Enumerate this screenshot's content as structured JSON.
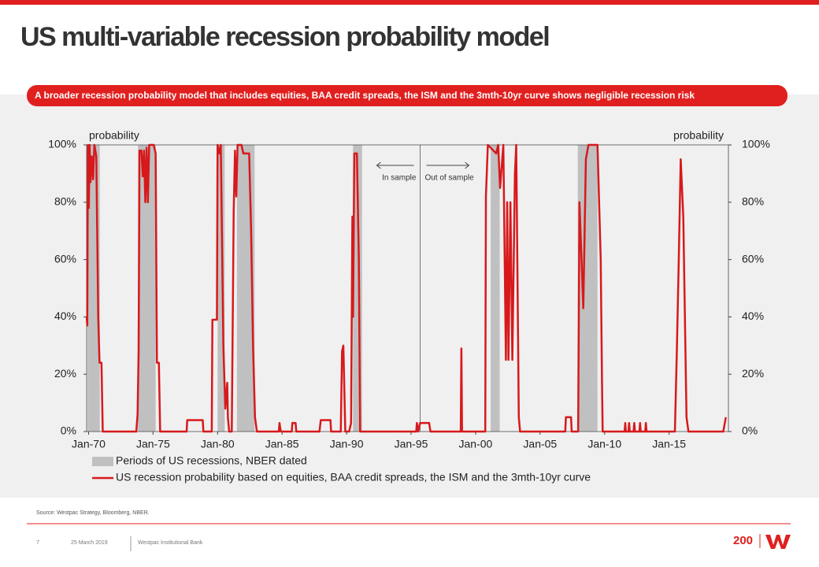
{
  "slide": {
    "title": "US multi-variable recession probability model",
    "banner": "A broader recession probability model that includes equities, BAA credit spreads, the ISM and the 3mth-10yr curve shows negligible recession risk",
    "source": "Source: Westpac Strategy, Bloomberg, NBER.",
    "page": "7",
    "date": "25 March 2019",
    "company": "Westpac Institutional Bank",
    "logo": "200"
  },
  "chart_data": {
    "type": "line",
    "y_label": "probability",
    "y2_label": "probability",
    "annotations": {
      "in_sample": "In sample",
      "out_sample": "Out of sample",
      "split": 1995.7
    },
    "xlim": [
      1969.85,
      2019.6
    ],
    "xticks": [
      {
        "value": 1970,
        "label": "Jan-70"
      },
      {
        "value": 1975,
        "label": "Jan-75"
      },
      {
        "value": 1980,
        "label": "Jan-80"
      },
      {
        "value": 1985,
        "label": "Jan-85"
      },
      {
        "value": 1990,
        "label": "Jan-90"
      },
      {
        "value": 1995,
        "label": "Jan-95"
      },
      {
        "value": 2000,
        "label": "Jan-00"
      },
      {
        "value": 2005,
        "label": "Jan-05"
      },
      {
        "value": 2010,
        "label": "Jan-10"
      },
      {
        "value": 2015,
        "label": "Jan-15"
      }
    ],
    "ylim": [
      0,
      100
    ],
    "yticks": [
      {
        "value": 0,
        "label": "0%"
      },
      {
        "value": 20,
        "label": "20%"
      },
      {
        "value": 40,
        "label": "40%"
      },
      {
        "value": 60,
        "label": "60%"
      },
      {
        "value": 80,
        "label": "80%"
      },
      {
        "value": 100,
        "label": "100%"
      }
    ],
    "y2lim": [
      0,
      100
    ],
    "y2ticks": [
      {
        "value": 0,
        "label": "0%"
      },
      {
        "value": 20,
        "label": "20%"
      },
      {
        "value": 40,
        "label": "40%"
      },
      {
        "value": 60,
        "label": "60%"
      },
      {
        "value": 80,
        "label": "80%"
      },
      {
        "value": 100,
        "label": "100%"
      }
    ],
    "x": [
      1969.85,
      1969.9,
      1969.95,
      1970.02,
      1970.08,
      1970.15,
      1970.25,
      1970.35,
      1970.45,
      1970.6,
      1970.75,
      1970.85,
      1971.0,
      1971.1,
      1973.7,
      1973.8,
      1973.88,
      1973.95,
      1974.1,
      1974.2,
      1974.3,
      1974.4,
      1974.5,
      1974.6,
      1974.7,
      1975.05,
      1975.2,
      1975.3,
      1975.45,
      1975.55,
      1977.6,
      1977.65,
      1978.85,
      1978.9,
      1979.55,
      1979.6,
      1979.95,
      1980.0,
      1980.15,
      1980.25,
      1980.45,
      1980.6,
      1980.75,
      1980.8,
      1980.9,
      1981.1,
      1981.25,
      1981.35,
      1981.45,
      1981.55,
      1981.85,
      1982.0,
      1982.45,
      1982.6,
      1982.75,
      1982.9,
      1983.05,
      1984.75,
      1984.8,
      1984.9,
      1985.75,
      1985.8,
      1986.05,
      1986.1,
      1987.9,
      1988.0,
      1988.75,
      1988.8,
      1989.55,
      1989.65,
      1989.75,
      1989.9,
      1990.2,
      1990.35,
      1990.45,
      1990.5,
      1990.6,
      1990.8,
      1990.95,
      1991.05,
      1995.4,
      1995.45,
      1995.55,
      1995.7,
      1996.4,
      1996.5,
      1998.85,
      1998.9,
      1998.95,
      2000.75,
      2000.8,
      2000.95,
      2001.6,
      2001.75,
      2001.9,
      2002.15,
      2002.35,
      2002.45,
      2002.55,
      2002.7,
      2002.85,
      2003.05,
      2003.15,
      2003.35,
      2003.45,
      2006.95,
      2007.0,
      2007.4,
      2007.45,
      2007.95,
      2008.05,
      2008.35,
      2008.55,
      2008.75,
      2009.45,
      2009.7,
      2009.8,
      2009.85,
      2011.55,
      2011.6,
      2011.65,
      2011.85,
      2011.9,
      2011.95,
      2012.25,
      2012.3,
      2012.35,
      2012.7,
      2012.75,
      2012.8,
      2013.15,
      2013.2,
      2013.25,
      2015.45,
      2015.6,
      2015.75,
      2015.9,
      2016.1,
      2016.35,
      2016.5,
      2019.2,
      2019.4
    ],
    "series": [
      {
        "name": "Periods of US recessions, NBER dated",
        "color": "#c0c0c0",
        "periods": [
          [
            1969.92,
            1970.87
          ],
          [
            1973.83,
            1975.2
          ],
          [
            1980.0,
            1980.55
          ],
          [
            1981.5,
            1982.87
          ],
          [
            1990.5,
            1991.2
          ],
          [
            2001.17,
            2001.87
          ],
          [
            2007.92,
            2009.45
          ]
        ]
      },
      {
        "name": "US recession probability based on equities, BAA credit spreads, the ISM and the 3mth-10yr curve",
        "color": "#d7191c",
        "values": [
          40,
          37,
          100,
          78,
          100,
          87,
          96,
          88,
          100,
          96,
          40,
          24,
          24,
          0,
          0,
          6,
          28,
          98,
          98,
          89,
          98,
          80,
          99,
          80,
          100,
          100,
          97,
          24,
          24,
          0,
          0,
          4,
          4,
          0,
          0,
          39,
          39,
          100,
          97,
          100,
          30,
          8,
          17,
          5,
          0,
          0,
          77,
          98,
          82,
          100,
          100,
          97,
          97,
          70,
          30,
          5,
          0,
          0,
          3,
          0,
          0,
          3,
          3,
          0,
          0,
          4,
          4,
          0,
          0,
          28,
          30,
          0,
          0,
          3,
          75,
          40,
          97,
          97,
          60,
          0,
          0,
          3,
          0,
          3,
          3,
          0,
          0,
          29,
          0,
          0,
          82,
          100,
          97,
          100,
          85,
          100,
          25,
          80,
          25,
          80,
          25,
          90,
          100,
          5,
          0,
          0,
          5,
          5,
          0,
          0,
          80,
          43,
          95,
          100,
          100,
          60,
          17,
          0,
          0,
          3,
          0,
          0,
          3,
          0,
          0,
          3,
          0,
          0,
          3,
          0,
          0,
          3,
          0,
          0,
          28,
          60,
          95,
          75,
          5,
          0,
          0,
          5
        ]
      }
    ]
  }
}
